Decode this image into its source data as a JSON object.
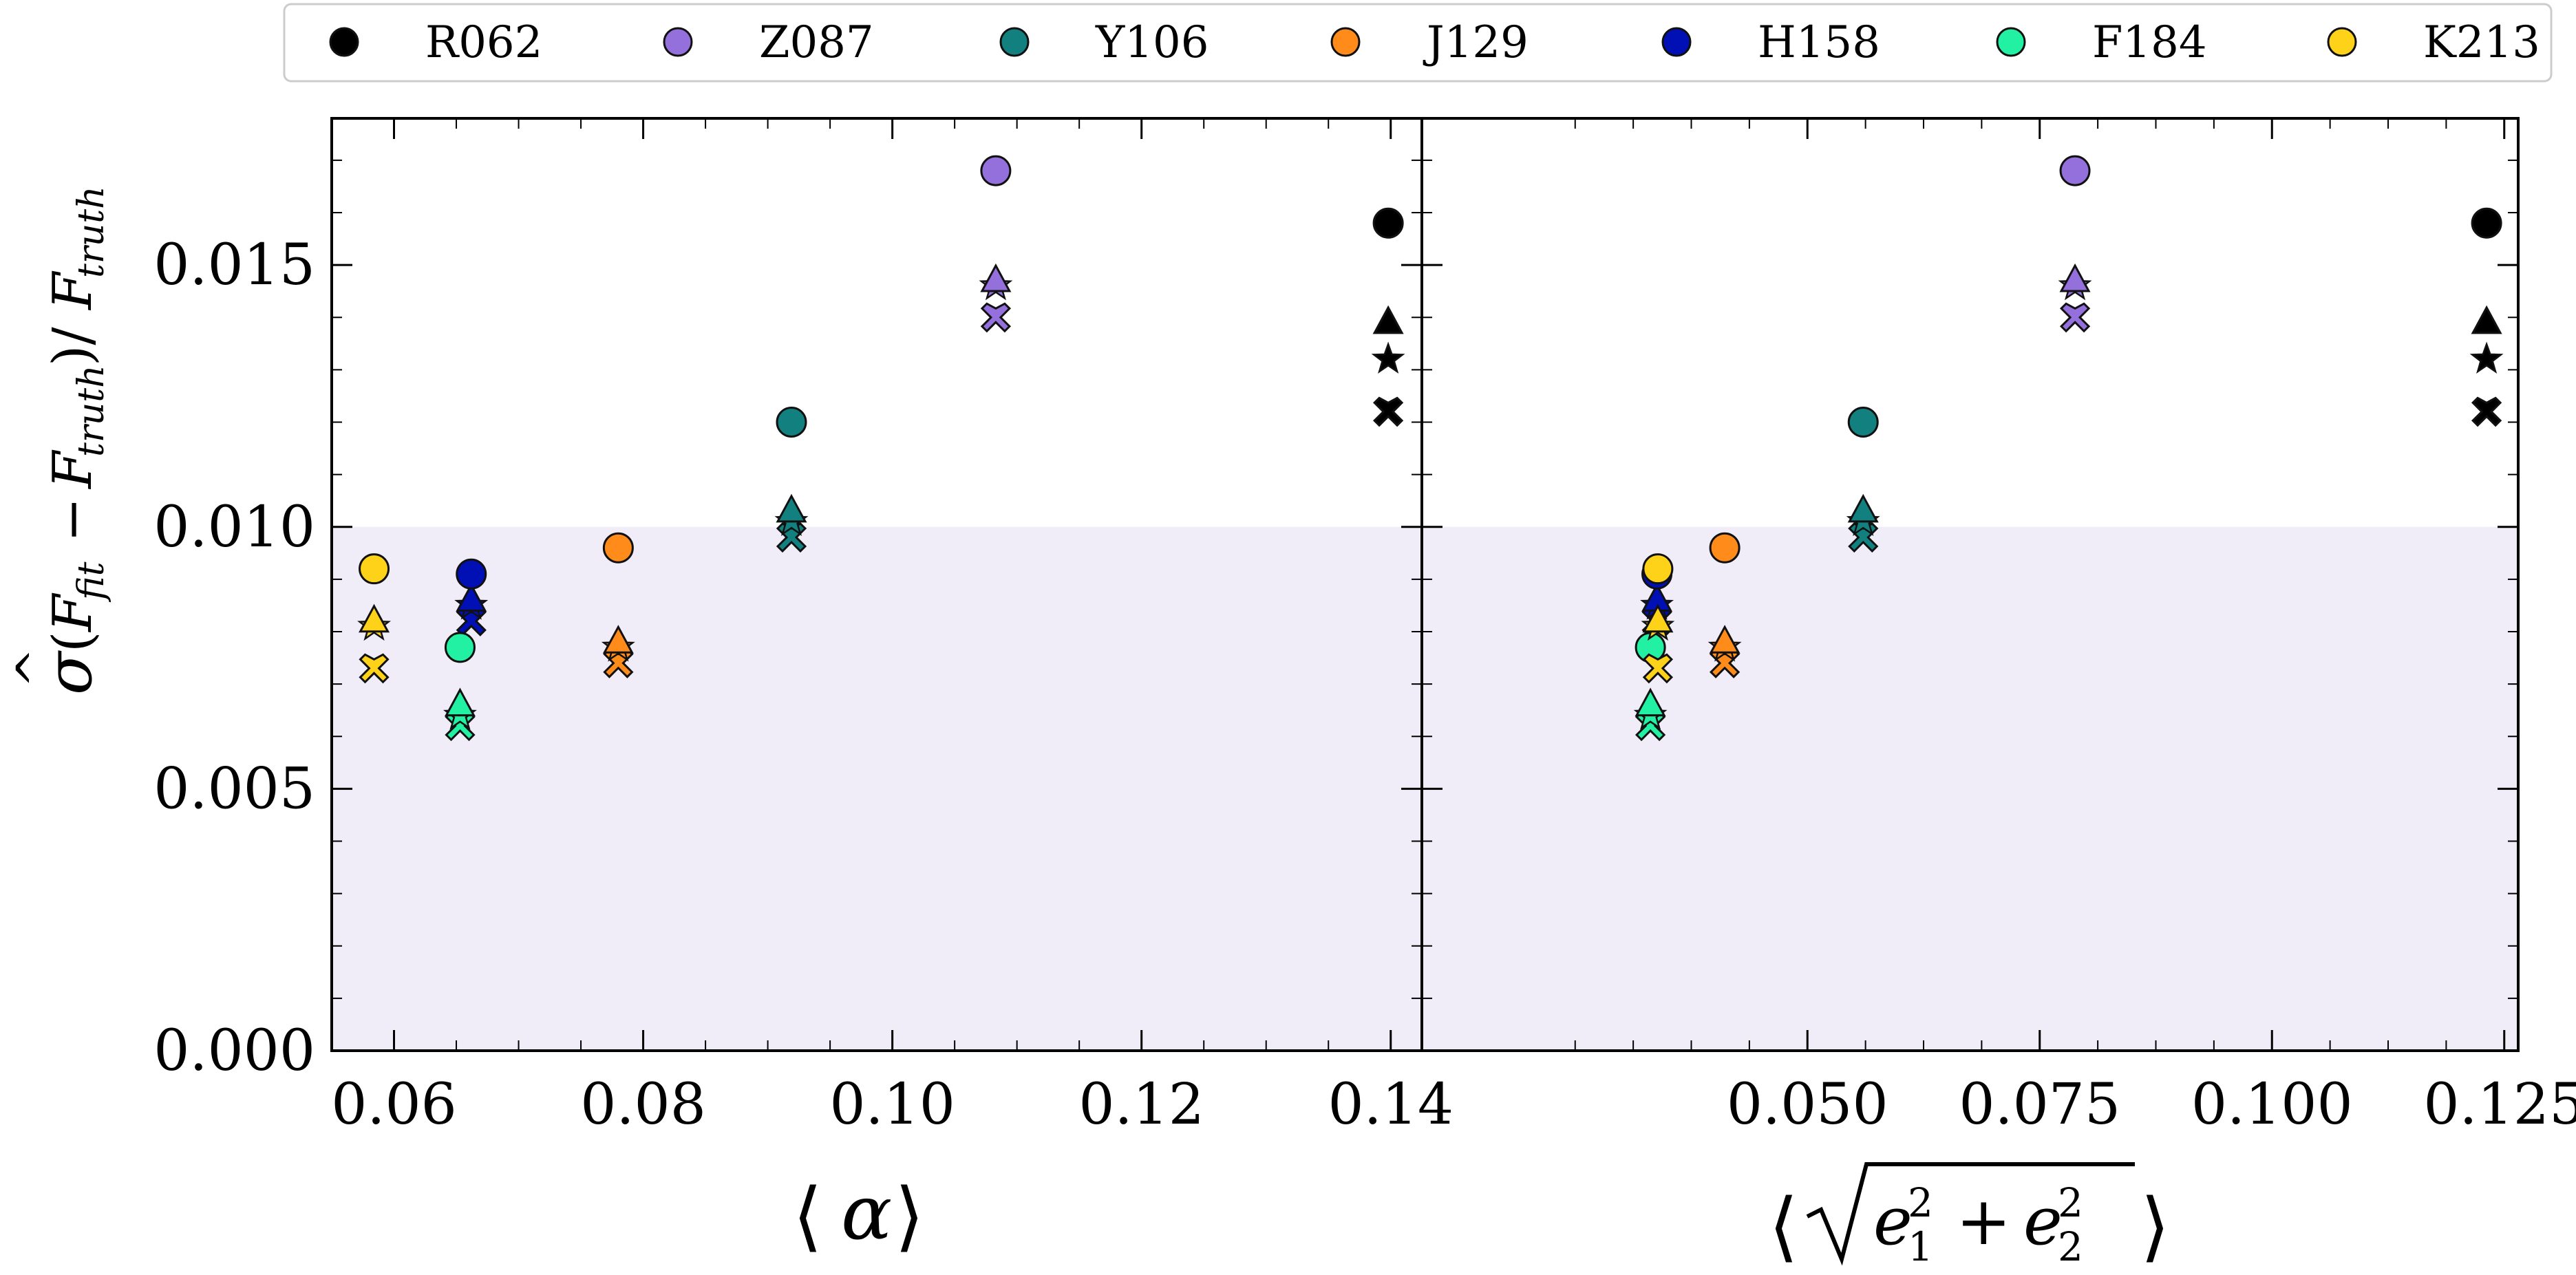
{
  "chart_data": {
    "type": "scatter",
    "legend": {
      "placement": "top",
      "entries": [
        {
          "name": "R062",
          "color": "#000000"
        },
        {
          "name": "Z087",
          "color": "#9370db"
        },
        {
          "name": "Y106",
          "color": "#138080"
        },
        {
          "name": "J129",
          "color": "#ff8c1a"
        },
        {
          "name": "H158",
          "color": "#0010b4"
        },
        {
          "name": "F184",
          "color": "#22f0a2"
        },
        {
          "name": "K213",
          "color": "#ffd21a"
        }
      ]
    },
    "marker_types": [
      "circle",
      "triangle",
      "star",
      "cross"
    ],
    "shaded_region": {
      "y_from": 0.0,
      "y_to": 0.01,
      "color": "#f0edf9"
    },
    "panels": [
      {
        "xlabel_text": "α",
        "xlim": [
          0.055,
          0.1425
        ],
        "ylim": [
          0.0,
          0.0178
        ],
        "xticks": [
          0.06,
          0.08,
          0.1,
          0.12,
          0.14
        ],
        "xtick_labels": [
          "0.06",
          "0.08",
          "0.10",
          "0.12",
          "0.14"
        ],
        "yticks": [
          0.0,
          0.005,
          0.01,
          0.015
        ],
        "ytick_labels": [
          "0.000",
          "0.005",
          "0.010",
          "0.015"
        ],
        "series": [
          {
            "name": "R062",
            "x": 0.1398,
            "circle": 0.0158,
            "triangle": 0.0139,
            "star": 0.0132,
            "cross": 0.0122
          },
          {
            "name": "Z087",
            "x": 0.1083,
            "circle": 0.0168,
            "triangle": 0.0147,
            "star": 0.0146,
            "cross": 0.014
          },
          {
            "name": "Y106",
            "x": 0.0919,
            "circle": 0.012,
            "triangle": 0.0103,
            "star": 0.0101,
            "cross": 0.0098
          },
          {
            "name": "J129",
            "x": 0.078,
            "circle": 0.0096,
            "triangle": 0.0078,
            "star": 0.0077,
            "cross": 0.0074
          },
          {
            "name": "H158",
            "x": 0.0662,
            "circle": 0.0091,
            "triangle": 0.0086,
            "star": 0.0085,
            "cross": 0.0082
          },
          {
            "name": "F184",
            "x": 0.0653,
            "circle": 0.0077,
            "triangle": 0.0066,
            "star": 0.0064,
            "cross": 0.0062
          },
          {
            "name": "K213",
            "x": 0.0584,
            "circle": 0.0092,
            "triangle": 0.0082,
            "star": 0.0081,
            "cross": 0.0073
          }
        ]
      },
      {
        "xlabel_text": "e",
        "xlim": [
          0.0085,
          0.1265
        ],
        "ylim": [
          0.0,
          0.0178
        ],
        "xticks": [
          0.05,
          0.075,
          0.1,
          0.125
        ],
        "xtick_labels": [
          "0.050",
          "0.075",
          "0.100",
          "0.125"
        ],
        "yticks": [
          0.0,
          0.005,
          0.01,
          0.015
        ],
        "ytick_labels": [
          "",
          "",
          "",
          ""
        ],
        "series": [
          {
            "name": "R062",
            "x": 0.1231,
            "circle": 0.0158,
            "triangle": 0.0139,
            "star": 0.0132,
            "cross": 0.0122
          },
          {
            "name": "Z087",
            "x": 0.0788,
            "circle": 0.0168,
            "triangle": 0.0147,
            "star": 0.0146,
            "cross": 0.014
          },
          {
            "name": "Y106",
            "x": 0.056,
            "circle": 0.012,
            "triangle": 0.0103,
            "star": 0.0101,
            "cross": 0.0098
          },
          {
            "name": "J129",
            "x": 0.0411,
            "circle": 0.0096,
            "triangle": 0.0078,
            "star": 0.0077,
            "cross": 0.0074
          },
          {
            "name": "H158",
            "x": 0.0338,
            "circle": 0.0091,
            "triangle": 0.0086,
            "star": 0.0085,
            "cross": 0.0082
          },
          {
            "name": "F184",
            "x": 0.0331,
            "circle": 0.0077,
            "triangle": 0.0066,
            "star": 0.0064,
            "cross": 0.0062
          },
          {
            "name": "K213",
            "x": 0.0339,
            "circle": 0.0092,
            "triangle": 0.0082,
            "star": 0.0081,
            "cross": 0.0073
          }
        ]
      }
    ]
  }
}
